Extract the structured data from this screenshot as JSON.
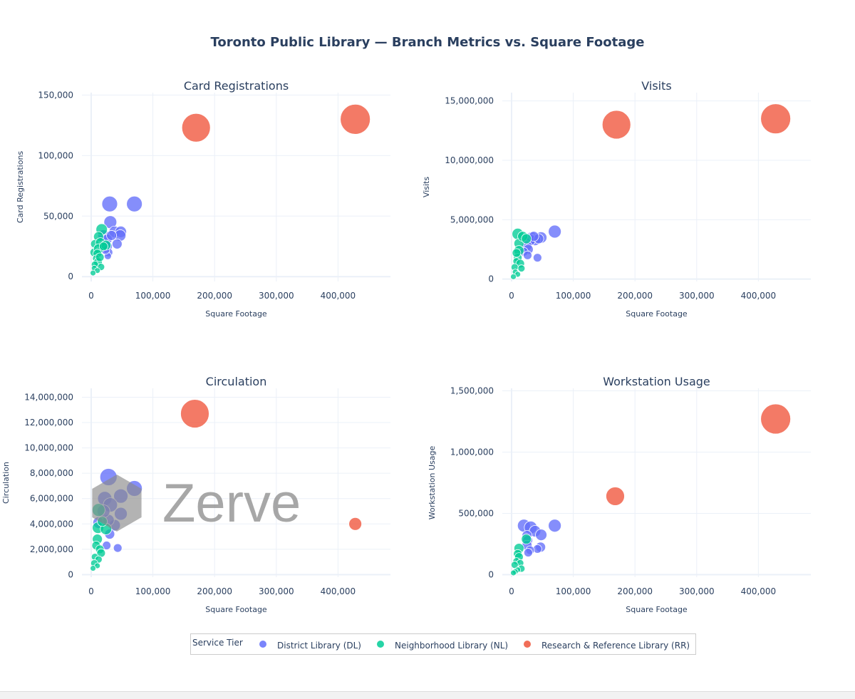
{
  "title": "Toronto Public Library — Branch Metrics vs. Square Footage",
  "colors": {
    "DL": "#636efa",
    "NL": "#00cc96",
    "RR": "#ef553b",
    "grid": "#ebf0f8",
    "zeroline": "#ebf0f8",
    "text": "#2a3f5f",
    "title": "#2a3f5f",
    "legend_border": "#cccccc"
  },
  "legend": {
    "title": "Service Tier",
    "placement": "bottom-center",
    "entries": [
      {
        "key": "DL",
        "label": "District Library (DL)"
      },
      {
        "key": "NL",
        "label": "Neighborhood Library (NL)"
      },
      {
        "key": "RR",
        "label": "Research & Reference Library (RR)"
      }
    ]
  },
  "watermark": {
    "text": "Zerve"
  },
  "chart_data": [
    {
      "type": "scatter",
      "subtitle": "Card Registrations",
      "xlabel": "Square Footage",
      "ylabel": "Card Registrations",
      "xlim": [
        -15000,
        485000
      ],
      "ylim": [
        -4000,
        152000
      ],
      "xticks": [
        0,
        100000,
        200000,
        300000,
        400000
      ],
      "xticklabels": [
        "0",
        "100,000",
        "200,000",
        "300,000",
        "400,000"
      ],
      "yticks": [
        0,
        50000,
        100000,
        150000
      ],
      "yticklabels": [
        "0",
        "50,000",
        "100,000",
        "150,000"
      ],
      "grid": true,
      "series": [
        {
          "key": "DL",
          "name": "District Library (DL)",
          "points": [
            [
              30000,
              60000,
              11
            ],
            [
              70000,
              60000,
              11
            ],
            [
              31000,
              45000,
              9
            ],
            [
              38000,
              37000,
              8
            ],
            [
              48000,
              37000,
              8
            ],
            [
              47000,
              34000,
              8
            ],
            [
              20000,
              34000,
              8
            ],
            [
              26000,
              31000,
              7
            ],
            [
              26000,
              25000,
              7
            ],
            [
              42000,
              27000,
              7
            ],
            [
              28000,
              20000,
              6
            ],
            [
              27000,
              17000,
              5
            ],
            [
              33000,
              34000,
              7
            ],
            [
              23000,
              22000,
              6
            ]
          ]
        },
        {
          "key": "NL",
          "name": "Neighborhood Library (NL)",
          "points": [
            [
              17000,
              39000,
              8
            ],
            [
              12000,
              33000,
              7
            ],
            [
              6000,
              27000,
              6
            ],
            [
              15000,
              28000,
              7
            ],
            [
              5000,
              20000,
              6
            ],
            [
              12000,
              23000,
              7
            ],
            [
              10000,
              19000,
              6
            ],
            [
              24000,
              26000,
              7
            ],
            [
              8000,
              15000,
              5
            ],
            [
              11000,
              12000,
              6
            ],
            [
              6000,
              10000,
              5
            ],
            [
              5000,
              7000,
              4
            ],
            [
              16000,
              8000,
              5
            ],
            [
              10000,
              5000,
              4
            ],
            [
              3000,
              3000,
              4
            ],
            [
              20000,
              25000,
              6
            ],
            [
              14000,
              16000,
              6
            ]
          ]
        },
        {
          "key": "RR",
          "name": "Research & Reference Library (RR)",
          "points": [
            [
              170000,
              123000,
              20
            ],
            [
              428000,
              130000,
              21
            ]
          ]
        }
      ]
    },
    {
      "type": "scatter",
      "subtitle": "Visits",
      "xlabel": "Square Footage",
      "ylabel": "Visits",
      "xlim": [
        -15000,
        485000
      ],
      "ylim": [
        -200000,
        15700000
      ],
      "xticks": [
        0,
        100000,
        200000,
        300000,
        400000
      ],
      "xticklabels": [
        "0",
        "100,000",
        "200,000",
        "300,000",
        "400,000"
      ],
      "yticks": [
        0,
        5000000,
        10000000,
        15000000
      ],
      "yticklabels": [
        "0",
        "5,000,000",
        "10,000,000",
        "15,000,000"
      ],
      "grid": true,
      "series": [
        {
          "key": "DL",
          "name": "District Library (DL)",
          "points": [
            [
              70000,
              4000000,
              9
            ],
            [
              48000,
              3500000,
              8
            ],
            [
              33000,
              3500000,
              8
            ],
            [
              38000,
              3300000,
              8
            ],
            [
              30000,
              3300000,
              8
            ],
            [
              25000,
              2800000,
              7
            ],
            [
              27000,
              2500000,
              7
            ],
            [
              20000,
              2300000,
              6
            ],
            [
              26000,
              2000000,
              6
            ],
            [
              42000,
              1800000,
              6
            ],
            [
              44000,
              3400000,
              7
            ],
            [
              36000,
              3600000,
              7
            ]
          ]
        },
        {
          "key": "NL",
          "name": "Neighborhood Library (NL)",
          "points": [
            [
              10000,
              3800000,
              8
            ],
            [
              12000,
              3000000,
              7
            ],
            [
              18000,
              3600000,
              7
            ],
            [
              12000,
              2400000,
              7
            ],
            [
              10000,
              1800000,
              6
            ],
            [
              8000,
              1500000,
              5
            ],
            [
              14000,
              1300000,
              6
            ],
            [
              5000,
              1000000,
              5
            ],
            [
              16000,
              900000,
              5
            ],
            [
              6000,
              600000,
              4
            ],
            [
              10000,
              400000,
              4
            ],
            [
              3000,
              200000,
              4
            ],
            [
              24000,
              3400000,
              7
            ],
            [
              8000,
              2200000,
              6
            ]
          ]
        },
        {
          "key": "RR",
          "name": "Research & Reference Library (RR)",
          "points": [
            [
              170000,
              13000000,
              20
            ],
            [
              428000,
              13500000,
              21
            ]
          ]
        }
      ]
    },
    {
      "type": "scatter",
      "subtitle": "Circulation",
      "xlabel": "Square Footage",
      "ylabel": "Circulation",
      "xlim": [
        -15000,
        485000
      ],
      "ylim": [
        -200000,
        14700000
      ],
      "xticks": [
        0,
        100000,
        200000,
        300000,
        400000
      ],
      "xticklabels": [
        "0",
        "100,000",
        "200,000",
        "300,000",
        "400,000"
      ],
      "yticks": [
        0,
        2000000,
        4000000,
        6000000,
        8000000,
        10000000,
        12000000,
        14000000
      ],
      "yticklabels": [
        "0",
        "2,000,000",
        "4,000,000",
        "6,000,000",
        "8,000,000",
        "10,000,000",
        "12,000,000",
        "14,000,000"
      ],
      "grid": true,
      "series": [
        {
          "key": "DL",
          "name": "District Library (DL)",
          "points": [
            [
              28000,
              7700000,
              12
            ],
            [
              70000,
              6800000,
              11
            ],
            [
              22000,
              6000000,
              10
            ],
            [
              48000,
              6200000,
              10
            ],
            [
              31000,
              5500000,
              10
            ],
            [
              48000,
              4800000,
              9
            ],
            [
              38000,
              3900000,
              8
            ],
            [
              12000,
              4100000,
              8
            ],
            [
              28000,
              4300000,
              8
            ],
            [
              30000,
              3200000,
              7
            ],
            [
              25000,
              2300000,
              6
            ],
            [
              43000,
              2100000,
              6
            ],
            [
              20000,
              5000000,
              9
            ]
          ]
        },
        {
          "key": "NL",
          "name": "Neighborhood Library (NL)",
          "points": [
            [
              12000,
              5100000,
              9
            ],
            [
              11000,
              3700000,
              8
            ],
            [
              24000,
              3600000,
              8
            ],
            [
              10000,
              2800000,
              7
            ],
            [
              8000,
              2300000,
              6
            ],
            [
              14000,
              2000000,
              6
            ],
            [
              16000,
              1700000,
              6
            ],
            [
              6000,
              1400000,
              5
            ],
            [
              12000,
              1200000,
              5
            ],
            [
              5000,
              900000,
              5
            ],
            [
              10000,
              700000,
              4
            ],
            [
              3000,
              500000,
              4
            ],
            [
              18000,
              4200000,
              7
            ]
          ]
        },
        {
          "key": "RR",
          "name": "Research & Reference Library (RR)",
          "points": [
            [
              168000,
              12700000,
              20
            ],
            [
              428000,
              4000000,
              9
            ]
          ]
        }
      ]
    },
    {
      "type": "scatter",
      "subtitle": "Workstation Usage",
      "xlabel": "Square Footage",
      "ylabel": "Workstation Usage",
      "xlim": [
        -15000,
        485000
      ],
      "ylim": [
        -20000,
        1520000
      ],
      "xticks": [
        0,
        100000,
        200000,
        300000,
        400000
      ],
      "xticklabels": [
        "0",
        "100,000",
        "200,000",
        "300,000",
        "400,000"
      ],
      "yticks": [
        0,
        500000,
        1000000,
        1500000
      ],
      "yticklabels": [
        "0",
        "500,000",
        "1,000,000",
        "1,500,000"
      ],
      "grid": true,
      "series": [
        {
          "key": "DL",
          "name": "District Library (DL)",
          "points": [
            [
              20000,
              400000,
              9
            ],
            [
              70000,
              400000,
              9
            ],
            [
              31000,
              385000,
              9
            ],
            [
              38000,
              355000,
              8
            ],
            [
              48000,
              325000,
              8
            ],
            [
              25000,
              320000,
              7
            ],
            [
              26000,
              280000,
              7
            ],
            [
              25000,
              240000,
              7
            ],
            [
              47000,
              225000,
              7
            ],
            [
              42000,
              210000,
              6
            ],
            [
              30000,
              200000,
              6
            ],
            [
              27000,
              180000,
              6
            ]
          ]
        },
        {
          "key": "NL",
          "name": "Neighborhood Library (NL)",
          "points": [
            [
              24000,
              290000,
              7
            ],
            [
              12000,
              215000,
              7
            ],
            [
              10000,
              170000,
              6
            ],
            [
              12000,
              145000,
              6
            ],
            [
              8000,
              110000,
              5
            ],
            [
              14000,
              95000,
              5
            ],
            [
              5000,
              80000,
              5
            ],
            [
              16000,
              50000,
              5
            ],
            [
              10000,
              40000,
              4
            ],
            [
              6000,
              25000,
              4
            ],
            [
              3000,
              15000,
              4
            ]
          ]
        },
        {
          "key": "RR",
          "name": "Research & Reference Library (RR)",
          "points": [
            [
              168000,
              640000,
              13
            ],
            [
              428000,
              1270000,
              21
            ]
          ]
        }
      ]
    }
  ]
}
